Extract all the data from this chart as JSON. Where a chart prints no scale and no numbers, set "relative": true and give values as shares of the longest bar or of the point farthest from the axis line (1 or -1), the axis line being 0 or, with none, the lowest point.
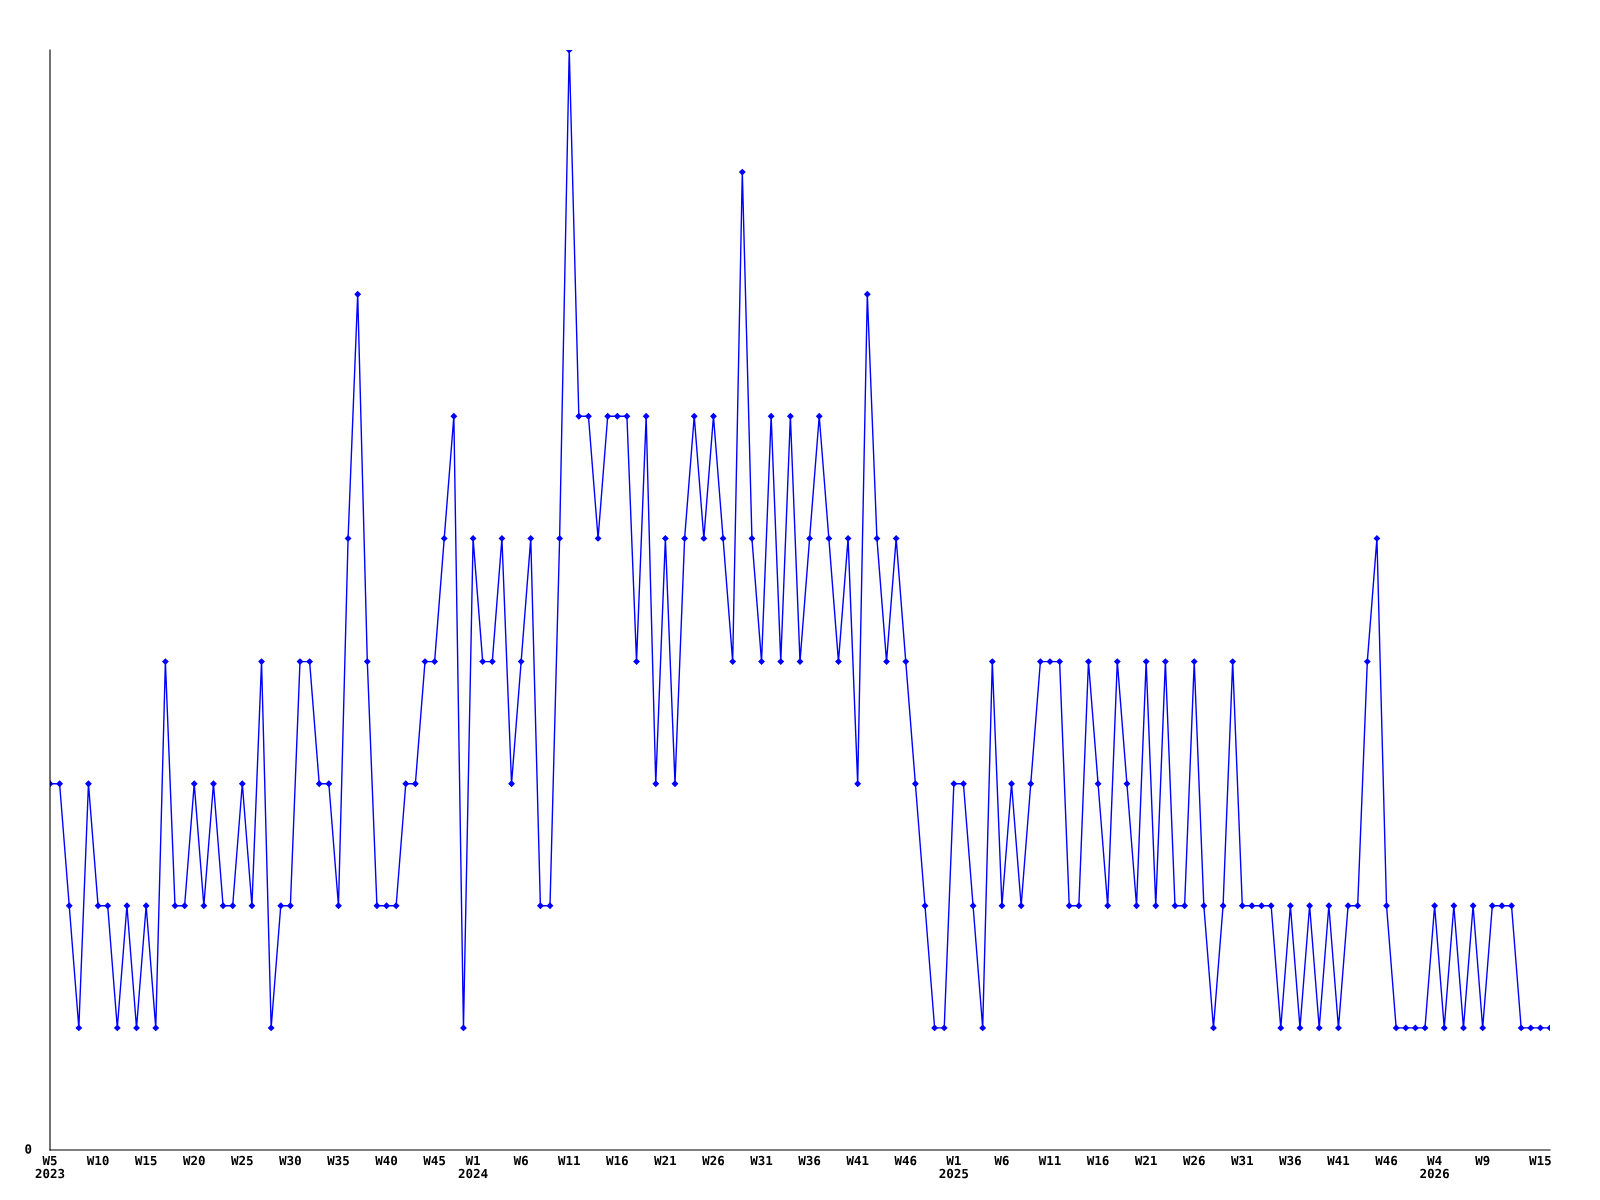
{
  "chart_data": {
    "type": "line",
    "relative": true,
    "marker": "diamond",
    "line_style": "solid",
    "grid": false,
    "annotations": [
      "0"
    ],
    "categories": [
      "W5\n2023",
      null,
      null,
      null,
      null,
      "W10",
      null,
      null,
      null,
      null,
      "W15",
      null,
      null,
      null,
      null,
      "W20",
      null,
      null,
      null,
      null,
      "W25",
      null,
      null,
      null,
      null,
      "W30",
      null,
      null,
      null,
      null,
      "W35",
      null,
      null,
      null,
      null,
      "W40",
      null,
      null,
      null,
      null,
      "W45",
      null,
      null,
      null,
      "W1\n2024",
      null,
      null,
      null,
      null,
      "W6",
      null,
      null,
      null,
      null,
      "W11",
      null,
      null,
      null,
      null,
      "W16",
      null,
      null,
      null,
      null,
      "W21",
      null,
      null,
      null,
      null,
      "W26",
      null,
      null,
      null,
      null,
      "W31",
      null,
      null,
      null,
      null,
      "W36",
      null,
      null,
      null,
      null,
      "W41",
      null,
      null,
      null,
      null,
      "W46",
      null,
      null,
      null,
      null,
      "W1\n2025",
      null,
      null,
      null,
      null,
      "W6",
      null,
      null,
      null,
      null,
      "W11",
      null,
      null,
      null,
      null,
      "W16",
      null,
      null,
      null,
      null,
      "W21",
      null,
      null,
      null,
      null,
      "W26",
      null,
      null,
      null,
      null,
      "W31",
      null,
      null,
      null,
      null,
      "W36",
      null,
      null,
      null,
      null,
      "W41",
      null,
      null,
      null,
      null,
      "W46",
      null,
      null,
      null,
      null,
      "W4\n2026",
      null,
      null,
      null,
      null,
      "W9",
      null,
      null,
      null,
      null,
      null,
      "W15",
      null
    ],
    "series": [
      {
        "color": "#0000ff",
        "values": [
          0.333,
          0.333,
          0.222,
          0.111,
          0.333,
          0.222,
          0.222,
          0.111,
          0.222,
          0.111,
          0.222,
          0.111,
          0.444,
          0.222,
          0.222,
          0.333,
          0.222,
          0.333,
          0.222,
          0.222,
          0.333,
          0.222,
          0.444,
          0.111,
          0.222,
          0.222,
          0.444,
          0.444,
          0.333,
          0.333,
          0.222,
          0.556,
          0.778,
          0.444,
          0.222,
          0.222,
          0.222,
          0.333,
          0.333,
          0.444,
          0.444,
          0.556,
          0.667,
          0.111,
          0.556,
          0.444,
          0.444,
          0.556,
          0.333,
          0.444,
          0.556,
          0.222,
          0.222,
          0.556,
          1,
          0.667,
          0.667,
          0.556,
          0.667,
          0.667,
          0.667,
          0.444,
          0.667,
          0.333,
          0.556,
          0.333,
          0.556,
          0.667,
          0.556,
          0.667,
          0.556,
          0.444,
          0.889,
          0.556,
          0.444,
          0.667,
          0.444,
          0.667,
          0.444,
          0.556,
          0.667,
          0.556,
          0.444,
          0.556,
          0.333,
          0.778,
          0.556,
          0.444,
          0.556,
          0.444,
          0.333,
          0.222,
          0.111,
          0.111,
          0.333,
          0.333,
          0.222,
          0.111,
          0.444,
          0.222,
          0.333,
          0.222,
          0.333,
          0.444,
          0.444,
          0.444,
          0.222,
          0.222,
          0.444,
          0.333,
          0.222,
          0.444,
          0.333,
          0.222,
          0.444,
          0.222,
          0.444,
          0.222,
          0.222,
          0.444,
          0.222,
          0.111,
          0.222,
          0.444,
          0.222,
          0.222,
          0.222,
          0.222,
          0.111,
          0.222,
          0.111,
          0.222,
          0.111,
          0.222,
          0.111,
          0.222,
          0.222,
          0.444,
          0.556,
          0.222,
          0.111,
          0.111,
          0.111,
          0.111,
          0.222,
          0.111,
          0.222,
          0.111,
          0.222,
          0.111,
          0.222,
          0.222,
          0.222,
          0.111,
          0.111,
          0.111,
          0.111
        ]
      }
    ]
  }
}
